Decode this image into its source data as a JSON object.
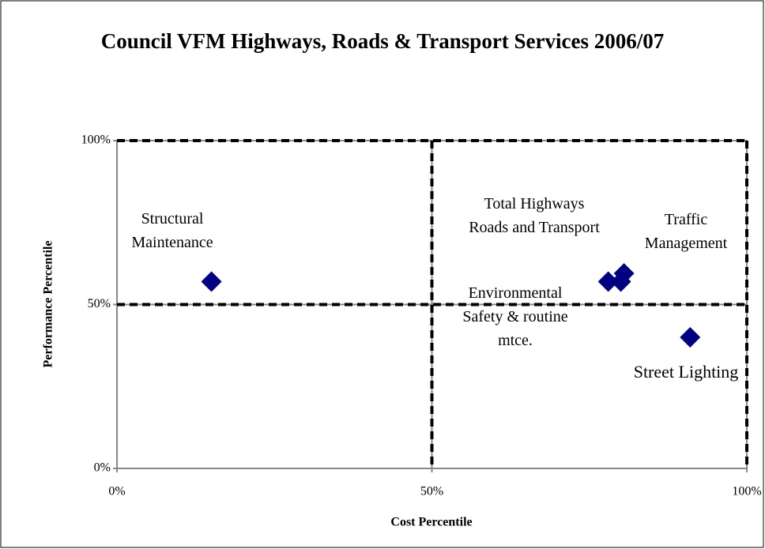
{
  "chart_data": {
    "type": "scatter",
    "title": "Council VFM Highways, Roads & Transport Services 2006/07",
    "x_label": "Cost Percentile",
    "y_label": "Performance Percentile",
    "x": [
      15,
      78,
      80.5,
      80,
      91
    ],
    "values": [
      57,
      57,
      59.5,
      57,
      40
    ],
    "point_labels": [
      "Structural Maintenance",
      "Total Highways Roads and Transport",
      "Traffic Management",
      "Environmental Safety & routine mtce.",
      "Street Lighting"
    ],
    "color": "#000080",
    "xlim": [
      0,
      100
    ],
    "ylim": [
      0,
      100
    ],
    "xticks": [
      {
        "value": 0,
        "label": "0%"
      },
      {
        "value": 50,
        "label": "50%"
      },
      {
        "value": 100,
        "label": "100%"
      }
    ],
    "yticks": [
      {
        "value": 0,
        "label": "0%"
      },
      {
        "value": 50,
        "label": "50%"
      },
      {
        "value": 100,
        "label": "100%"
      }
    ],
    "grid": true
  }
}
